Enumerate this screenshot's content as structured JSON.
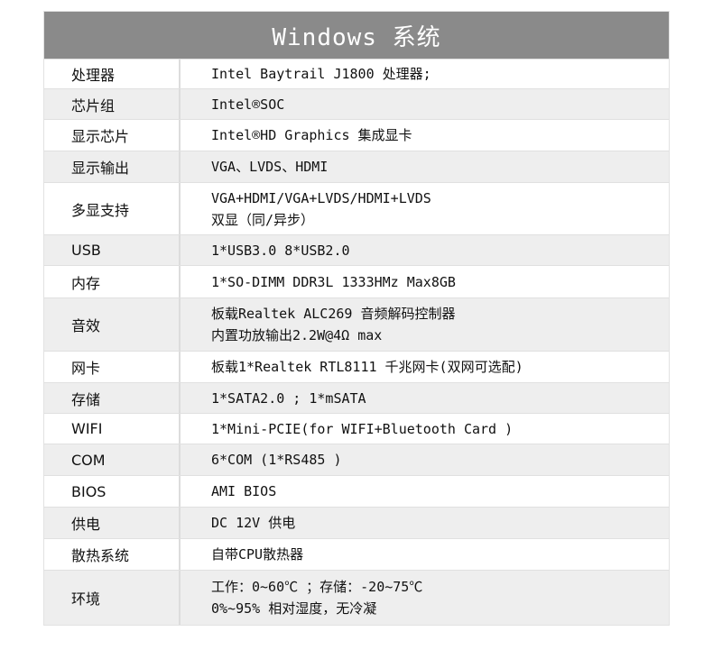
{
  "title": "Windows 系统",
  "rows": [
    {
      "key": "处理器",
      "lines": [
        "Intel Baytrail  J1800 处理器;"
      ]
    },
    {
      "key": "芯片组",
      "lines": [
        "Intel®SOC"
      ]
    },
    {
      "key": "显示芯片",
      "lines": [
        "Intel®HD Graphics 集成显卡"
      ]
    },
    {
      "key": "显示输出",
      "lines": [
        "VGA、LVDS、HDMI"
      ]
    },
    {
      "key": "多显支持",
      "lines": [
        "VGA+HDMI/VGA+LVDS/HDMI+LVDS",
        "双显（同/异步）"
      ]
    },
    {
      "key": "USB",
      "lines": [
        "1*USB3.0  8*USB2.0"
      ]
    },
    {
      "key": "内存",
      "lines": [
        "1*SO-DIMM DDR3L 1333HMz Max8GB"
      ]
    },
    {
      "key": "音效",
      "lines": [
        "板载Realtek ALC269  音频解码控制器",
        "内置功放输出2.2W@4Ω max"
      ]
    },
    {
      "key": "网卡",
      "lines": [
        "板载1*Realtek RTL8111 千兆网卡(双网可选配)"
      ]
    },
    {
      "key": "存储",
      "lines": [
        "1*SATA2.0 ; 1*mSATA"
      ]
    },
    {
      "key": "WIFI",
      "lines": [
        "1*Mini-PCIE(for WIFI+Bluetooth Card )"
      ]
    },
    {
      "key": "COM",
      "lines": [
        "6*COM (1*RS485 )"
      ]
    },
    {
      "key": "BIOS",
      "lines": [
        "AMI  BIOS"
      ]
    },
    {
      "key": "供电",
      "lines": [
        "DC 12V 供电"
      ]
    },
    {
      "key": "散热系统",
      "lines": [
        "自带CPU散热器"
      ]
    },
    {
      "key": "环境",
      "lines": [
        "工作：0~60℃  ；存储：-20~75℃",
        "0%~95% 相对湿度，无冷凝"
      ]
    }
  ]
}
